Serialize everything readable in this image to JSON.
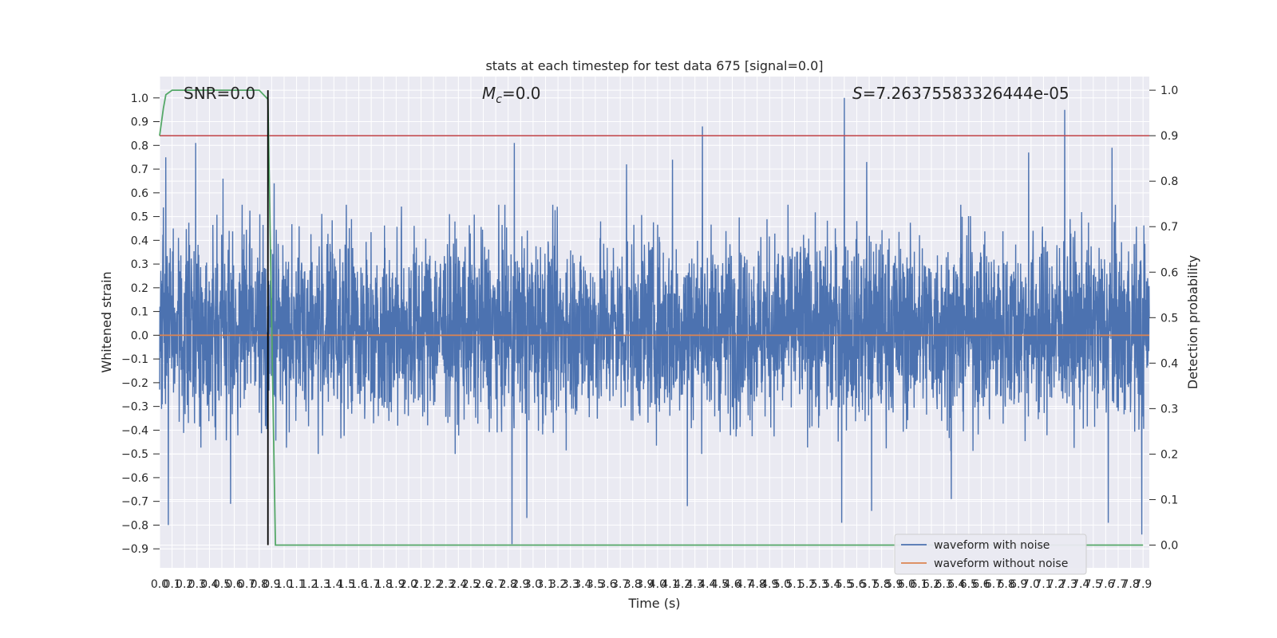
{
  "chart_data": {
    "type": "line",
    "title": "stats at each timestep for test data 675 [signal=0.0]",
    "xlabel": "Time (s)",
    "ylabel_left": "Whitened strain",
    "ylabel_right": "Detection probability",
    "xlim": [
      0.0,
      7.95
    ],
    "ylim_left": [
      -0.98,
      1.09
    ],
    "ylim_right": [
      -0.05,
      1.03
    ],
    "x_ticks": [
      0.0,
      0.1,
      0.2,
      0.3,
      0.4,
      0.5,
      0.6,
      0.7,
      0.8,
      0.9,
      1.0,
      1.1,
      1.2,
      1.3,
      1.4,
      1.5,
      1.6,
      1.7,
      1.8,
      1.9,
      2.0,
      2.1,
      2.2,
      2.3,
      2.4,
      2.5,
      2.6,
      2.7,
      2.8,
      2.9,
      3.0,
      3.1,
      3.2,
      3.3,
      3.4,
      3.5,
      3.6,
      3.7,
      3.8,
      3.9,
      4.0,
      4.1,
      4.2,
      4.3,
      4.4,
      4.5,
      4.6,
      4.7,
      4.8,
      4.9,
      5.0,
      5.1,
      5.2,
      5.3,
      5.4,
      5.5,
      5.6,
      5.7,
      5.8,
      5.9,
      6.0,
      6.1,
      6.2,
      6.3,
      6.4,
      6.5,
      6.6,
      6.7,
      6.8,
      6.9,
      7.0,
      7.1,
      7.2,
      7.3,
      7.4,
      7.5,
      7.6,
      7.7,
      7.8,
      7.9
    ],
    "x_tick_labels": [
      "0.0",
      "0.1",
      "0.2",
      "0.3",
      "0.4",
      "0.5",
      "0.6",
      "0.7",
      "0.8",
      "0.9",
      "1.0",
      "1.1",
      "1.2",
      "1.3",
      "1.4",
      "1.5",
      "1.6",
      "1.7",
      "1.8",
      "1.9",
      "2.0",
      "2.1",
      "2.2",
      "2.3",
      "2.4",
      "2.5",
      "2.6",
      "2.7",
      "2.8",
      "2.9",
      "3.0",
      "3.1",
      "3.2",
      "3.3",
      "3.4",
      "3.5",
      "3.6",
      "3.7",
      "3.8",
      "3.9",
      "4.0",
      "4.1",
      "4.2",
      "4.3",
      "4.4",
      "4.5",
      "4.6",
      "4.7",
      "4.8",
      "4.9",
      "5.0",
      "5.1",
      "5.2",
      "5.3",
      "5.4",
      "5.5",
      "5.6",
      "5.7",
      "5.8",
      "5.9",
      "6.0",
      "6.1",
      "6.2",
      "6.3",
      "6.4",
      "6.5",
      "6.6",
      "6.7",
      "6.8",
      "6.9",
      "7.0",
      "7.1",
      "7.2",
      "7.3",
      "7.4",
      "7.5",
      "7.6",
      "7.7",
      "7.8",
      "7.9"
    ],
    "y_ticks_left": [
      -0.9,
      -0.8,
      -0.7,
      -0.6,
      -0.5,
      -0.4,
      -0.3,
      -0.2,
      -0.1,
      0.0,
      0.1,
      0.2,
      0.3,
      0.4,
      0.5,
      0.6,
      0.7,
      0.8,
      0.9,
      1.0
    ],
    "y_tick_labels_left": [
      "−0.9",
      "−0.8",
      "−0.7",
      "−0.6",
      "−0.5",
      "−0.4",
      "−0.3",
      "−0.2",
      "−0.1",
      "0.0",
      "0.1",
      "0.2",
      "0.3",
      "0.4",
      "0.5",
      "0.6",
      "0.7",
      "0.8",
      "0.9",
      "1.0"
    ],
    "y_ticks_right": [
      0.0,
      0.1,
      0.2,
      0.3,
      0.4,
      0.5,
      0.6,
      0.7,
      0.8,
      0.9,
      1.0
    ],
    "y_tick_labels_right": [
      "0.0",
      "0.1",
      "0.2",
      "0.3",
      "0.4",
      "0.5",
      "0.6",
      "0.7",
      "0.8",
      "0.9",
      "1.0"
    ],
    "grid": true,
    "legend_position": "lower-right",
    "annotations": {
      "snr": "SNR=0.0",
      "mc_symbol": "M",
      "mc_sub": "c",
      "mc_value": "=0.0",
      "s_symbol": "S",
      "s_value": "=7.26375583326444e-05"
    },
    "series": [
      {
        "name": "waveform with noise",
        "axis": "left",
        "color": "#4c72b0",
        "x_range": [
          0.0,
          7.95
        ],
        "envelope_typical": [
          -0.45,
          0.5
        ],
        "peak_points": [
          {
            "x": 0.05,
            "y": 0.75
          },
          {
            "x": 0.07,
            "y": -0.8
          },
          {
            "x": 0.29,
            "y": 0.81
          },
          {
            "x": 0.51,
            "y": 0.66
          },
          {
            "x": 0.57,
            "y": -0.71
          },
          {
            "x": 0.92,
            "y": 0.64
          },
          {
            "x": 2.85,
            "y": 0.81
          },
          {
            "x": 2.83,
            "y": -0.88
          },
          {
            "x": 2.95,
            "y": -0.77
          },
          {
            "x": 3.75,
            "y": 0.72
          },
          {
            "x": 4.12,
            "y": 0.74
          },
          {
            "x": 4.24,
            "y": -0.72
          },
          {
            "x": 4.36,
            "y": 0.88
          },
          {
            "x": 5.5,
            "y": 1.0
          },
          {
            "x": 5.48,
            "y": -0.79
          },
          {
            "x": 5.68,
            "y": 0.73
          },
          {
            "x": 5.72,
            "y": -0.74
          },
          {
            "x": 6.36,
            "y": -0.69
          },
          {
            "x": 6.98,
            "y": 0.77
          },
          {
            "x": 7.27,
            "y": 0.95
          },
          {
            "x": 7.62,
            "y": -0.79
          },
          {
            "x": 7.65,
            "y": 0.79
          },
          {
            "x": 7.89,
            "y": -0.84
          }
        ]
      },
      {
        "name": "waveform without noise",
        "axis": "left",
        "color": "#dd8452",
        "x": [
          0.0,
          7.95
        ],
        "y": [
          0.0,
          0.0
        ]
      },
      {
        "name": "",
        "axis": "right",
        "color": "#55a868",
        "x": [
          0.0,
          0.03,
          0.05,
          0.1,
          0.2,
          0.3,
          0.5,
          0.7,
          0.8,
          0.87,
          0.93,
          7.9
        ],
        "y": [
          0.9,
          0.96,
          0.99,
          1.0,
          1.0,
          1.0,
          1.0,
          1.0,
          1.0,
          0.98,
          0.0,
          0.0
        ]
      }
    ],
    "threshold_line": {
      "axis": "right",
      "y": 0.9,
      "color": "#c44e52"
    },
    "marker_line": {
      "x": 0.87,
      "color": "#000000"
    }
  }
}
